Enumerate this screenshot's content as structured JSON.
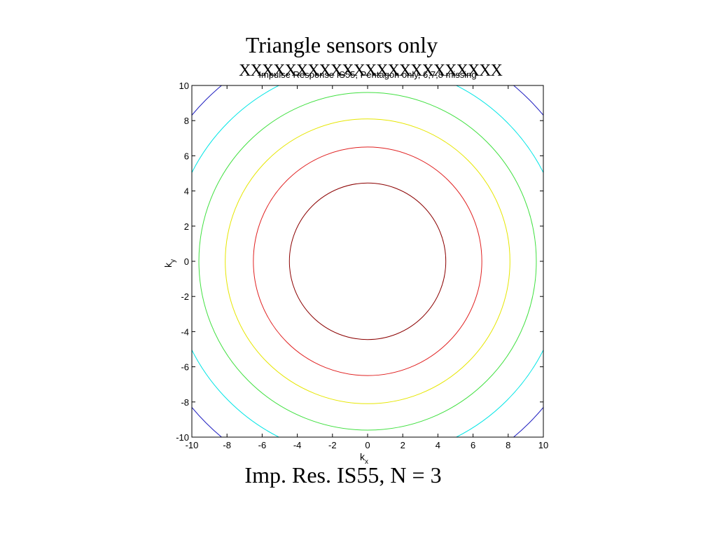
{
  "slide": {
    "title": "Triangle sensors only",
    "caption": "Imp. Res. IS55, N = 3",
    "overlay_text": "XXXXXXXXXXXXXXXXXXXXXXX"
  },
  "chart_data": {
    "type": "contour",
    "title": "Impulse Response IS55, Pentagon only, 6,7,8 missing",
    "xlabel": "k",
    "xlabel_sub": "x",
    "ylabel": "k",
    "ylabel_sub": "y",
    "xlim": [
      -10,
      10
    ],
    "ylim": [
      -10,
      10
    ],
    "xticks": [
      "-10",
      "-8",
      "-6",
      "-4",
      "-2",
      "0",
      "2",
      "4",
      "6",
      "8",
      "10"
    ],
    "yticks": [
      "10",
      "8",
      "6",
      "4",
      "2",
      "0",
      "-2",
      "-4",
      "-6",
      "-8",
      "-10"
    ],
    "grid": false,
    "center": [
      0,
      0
    ],
    "contours": [
      {
        "radius": 4.45,
        "color": "#8b0000"
      },
      {
        "radius": 6.5,
        "color": "#e02020"
      },
      {
        "radius": 8.1,
        "color": "#e6e600"
      },
      {
        "radius": 9.6,
        "color": "#40e040"
      },
      {
        "radius": 11.2,
        "color": "#00e5e5"
      },
      {
        "radius": 13.0,
        "color": "#2020c0"
      }
    ]
  }
}
